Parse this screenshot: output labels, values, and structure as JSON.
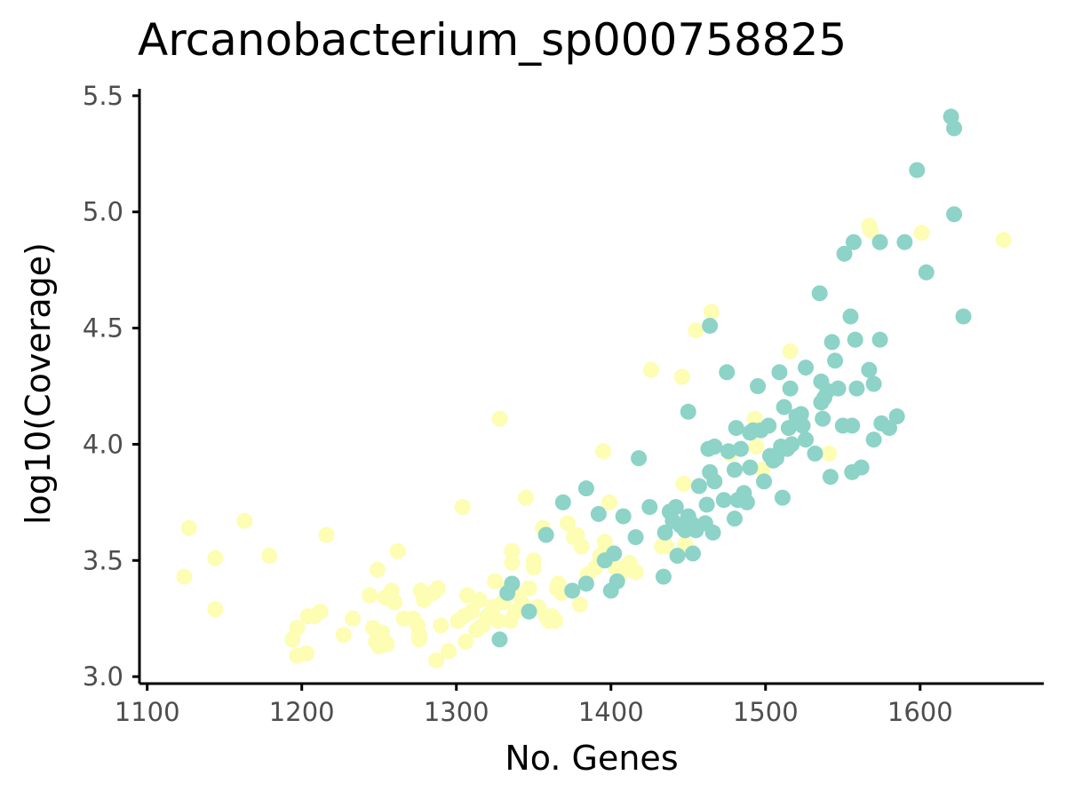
{
  "chart_data": {
    "type": "scatter",
    "title": "Arcanobacterium_sp000758825",
    "xlabel": "No. Genes",
    "ylabel": "log10(Coverage)",
    "xlim": [
      1095,
      1680
    ],
    "ylim": [
      2.97,
      5.53
    ],
    "x_ticks": [
      1100,
      1200,
      1300,
      1400,
      1500,
      1600
    ],
    "y_ticks": [
      3.0,
      3.5,
      4.0,
      4.5,
      5.0,
      5.5
    ],
    "x_tick_labels": [
      "1100",
      "1200",
      "1300",
      "1400",
      "1500",
      "1600"
    ],
    "y_tick_labels": [
      "3.0",
      "3.5",
      "4.0",
      "4.5",
      "5.0",
      "5.5"
    ],
    "grid": false,
    "legend": "none",
    "series": [
      {
        "color": "#fdfdb3",
        "points": [
          [
            1124,
            3.43
          ],
          [
            1127,
            3.64
          ],
          [
            1144,
            3.51
          ],
          [
            1144,
            3.29
          ],
          [
            1163,
            3.67
          ],
          [
            1179,
            3.52
          ],
          [
            1194,
            3.16
          ],
          [
            1197,
            3.21
          ],
          [
            1197,
            3.09
          ],
          [
            1203,
            3.1
          ],
          [
            1204,
            3.26
          ],
          [
            1208,
            3.26
          ],
          [
            1212,
            3.28
          ],
          [
            1216,
            3.61
          ],
          [
            1227,
            3.18
          ],
          [
            1233,
            3.25
          ],
          [
            1244,
            3.35
          ],
          [
            1246,
            3.21
          ],
          [
            1248,
            3.15
          ],
          [
            1249,
            3.46
          ],
          [
            1250,
            3.13
          ],
          [
            1252,
            3.19
          ],
          [
            1254,
            3.34
          ],
          [
            1255,
            3.14
          ],
          [
            1258,
            3.37
          ],
          [
            1260,
            3.32
          ],
          [
            1262,
            3.54
          ],
          [
            1266,
            3.25
          ],
          [
            1272,
            3.25
          ],
          [
            1275,
            3.22
          ],
          [
            1276,
            3.18
          ],
          [
            1276,
            3.16
          ],
          [
            1277,
            3.37
          ],
          [
            1279,
            3.33
          ],
          [
            1285,
            3.36
          ],
          [
            1287,
            3.07
          ],
          [
            1288,
            3.38
          ],
          [
            1290,
            3.22
          ],
          [
            1295,
            3.11
          ],
          [
            1301,
            3.24
          ],
          [
            1304,
            3.73
          ],
          [
            1305,
            3.26
          ],
          [
            1306,
            3.15
          ],
          [
            1307,
            3.35
          ],
          [
            1310,
            3.28
          ],
          [
            1313,
            3.2
          ],
          [
            1315,
            3.33
          ],
          [
            1317,
            3.22
          ],
          [
            1320,
            3.26
          ],
          [
            1323,
            3.28
          ],
          [
            1324,
            3.3
          ],
          [
            1325,
            3.41
          ],
          [
            1327,
            3.24
          ],
          [
            1328,
            4.11
          ],
          [
            1330,
            3.32
          ],
          [
            1334,
            3.38
          ],
          [
            1335,
            3.24
          ],
          [
            1336,
            3.49
          ],
          [
            1336,
            3.54
          ],
          [
            1338,
            3.28
          ],
          [
            1340,
            3.35
          ],
          [
            1343,
            3.31
          ],
          [
            1345,
            3.77
          ],
          [
            1347,
            3.38
          ],
          [
            1350,
            3.47
          ],
          [
            1350,
            3.5
          ],
          [
            1353,
            3.3
          ],
          [
            1356,
            3.64
          ],
          [
            1358,
            3.26
          ],
          [
            1360,
            3.24
          ],
          [
            1362,
            3.26
          ],
          [
            1364,
            3.24
          ],
          [
            1365,
            3.38
          ],
          [
            1366,
            3.4
          ],
          [
            1368,
            3.36
          ],
          [
            1372,
            3.66
          ],
          [
            1376,
            3.6
          ],
          [
            1378,
            3.61
          ],
          [
            1380,
            3.31
          ],
          [
            1381,
            3.56
          ],
          [
            1385,
            3.44
          ],
          [
            1390,
            3.47
          ],
          [
            1393,
            3.52
          ],
          [
            1395,
            3.97
          ],
          [
            1396,
            3.58
          ],
          [
            1397,
            3.55
          ],
          [
            1399,
            3.75
          ],
          [
            1403,
            3.47
          ],
          [
            1406,
            3.44
          ],
          [
            1412,
            3.49
          ],
          [
            1416,
            3.45
          ],
          [
            1426,
            4.32
          ],
          [
            1433,
            3.56
          ],
          [
            1436,
            3.56
          ],
          [
            1446,
            4.29
          ],
          [
            1447,
            3.83
          ],
          [
            1448,
            3.57
          ],
          [
            1455,
            4.49
          ],
          [
            1465,
            4.57
          ],
          [
            1477,
            3.96
          ],
          [
            1493,
            4.11
          ],
          [
            1494,
            3.99
          ],
          [
            1498,
            3.89
          ],
          [
            1516,
            4.4
          ],
          [
            1541,
            3.96
          ],
          [
            1567,
            4.94
          ],
          [
            1568,
            4.92
          ],
          [
            1601,
            4.91
          ],
          [
            1654,
            4.88
          ]
        ]
      },
      {
        "color": "#8dd3c7",
        "points": [
          [
            1328,
            3.16
          ],
          [
            1333,
            3.36
          ],
          [
            1336,
            3.4
          ],
          [
            1347,
            3.28
          ],
          [
            1358,
            3.61
          ],
          [
            1369,
            3.75
          ],
          [
            1375,
            3.37
          ],
          [
            1384,
            3.81
          ],
          [
            1384,
            3.4
          ],
          [
            1392,
            3.7
          ],
          [
            1396,
            3.5
          ],
          [
            1400,
            3.37
          ],
          [
            1402,
            3.53
          ],
          [
            1404,
            3.41
          ],
          [
            1408,
            3.69
          ],
          [
            1416,
            3.6
          ],
          [
            1418,
            3.94
          ],
          [
            1425,
            3.73
          ],
          [
            1434,
            3.43
          ],
          [
            1435,
            3.62
          ],
          [
            1438,
            3.71
          ],
          [
            1440,
            3.67
          ],
          [
            1442,
            3.73
          ],
          [
            1443,
            3.52
          ],
          [
            1445,
            3.65
          ],
          [
            1448,
            3.63
          ],
          [
            1450,
            4.14
          ],
          [
            1450,
            3.69
          ],
          [
            1452,
            3.66
          ],
          [
            1453,
            3.53
          ],
          [
            1455,
            3.63
          ],
          [
            1457,
            3.82
          ],
          [
            1461,
            3.66
          ],
          [
            1462,
            3.74
          ],
          [
            1463,
            3.98
          ],
          [
            1464,
            3.88
          ],
          [
            1464,
            4.51
          ],
          [
            1466,
            3.62
          ],
          [
            1467,
            3.99
          ],
          [
            1467,
            3.84
          ],
          [
            1473,
            3.76
          ],
          [
            1475,
            4.31
          ],
          [
            1476,
            3.97
          ],
          [
            1480,
            3.68
          ],
          [
            1480,
            3.89
          ],
          [
            1481,
            4.07
          ],
          [
            1482,
            3.76
          ],
          [
            1484,
            3.98
          ],
          [
            1486,
            3.79
          ],
          [
            1488,
            3.75
          ],
          [
            1490,
            3.9
          ],
          [
            1490,
            4.05
          ],
          [
            1492,
            4.06
          ],
          [
            1495,
            4.25
          ],
          [
            1497,
            4.06
          ],
          [
            1499,
            3.84
          ],
          [
            1502,
            4.08
          ],
          [
            1503,
            3.95
          ],
          [
            1505,
            3.93
          ],
          [
            1507,
            3.94
          ],
          [
            1509,
            4.31
          ],
          [
            1510,
            3.99
          ],
          [
            1511,
            3.77
          ],
          [
            1512,
            4.16
          ],
          [
            1514,
            3.98
          ],
          [
            1515,
            4.07
          ],
          [
            1516,
            4.24
          ],
          [
            1517,
            4.0
          ],
          [
            1520,
            4.12
          ],
          [
            1523,
            4.13
          ],
          [
            1524,
            4.08
          ],
          [
            1526,
            4.33
          ],
          [
            1526,
            4.02
          ],
          [
            1532,
            3.96
          ],
          [
            1535,
            4.65
          ],
          [
            1536,
            4.27
          ],
          [
            1536,
            4.18
          ],
          [
            1537,
            4.11
          ],
          [
            1538,
            4.2
          ],
          [
            1540,
            4.23
          ],
          [
            1542,
            3.86
          ],
          [
            1543,
            4.44
          ],
          [
            1545,
            4.36
          ],
          [
            1547,
            4.24
          ],
          [
            1550,
            4.08
          ],
          [
            1551,
            4.82
          ],
          [
            1555,
            4.55
          ],
          [
            1556,
            3.88
          ],
          [
            1556,
            4.08
          ],
          [
            1557,
            4.87
          ],
          [
            1558,
            4.45
          ],
          [
            1559,
            4.24
          ],
          [
            1562,
            3.9
          ],
          [
            1567,
            4.32
          ],
          [
            1570,
            4.02
          ],
          [
            1570,
            4.26
          ],
          [
            1574,
            4.87
          ],
          [
            1574,
            4.45
          ],
          [
            1575,
            4.09
          ],
          [
            1580,
            4.07
          ],
          [
            1585,
            4.12
          ],
          [
            1590,
            4.87
          ],
          [
            1598,
            5.18
          ],
          [
            1604,
            4.74
          ],
          [
            1620,
            5.41
          ],
          [
            1622,
            4.99
          ],
          [
            1622,
            5.36
          ],
          [
            1628,
            4.55
          ]
        ]
      }
    ]
  }
}
